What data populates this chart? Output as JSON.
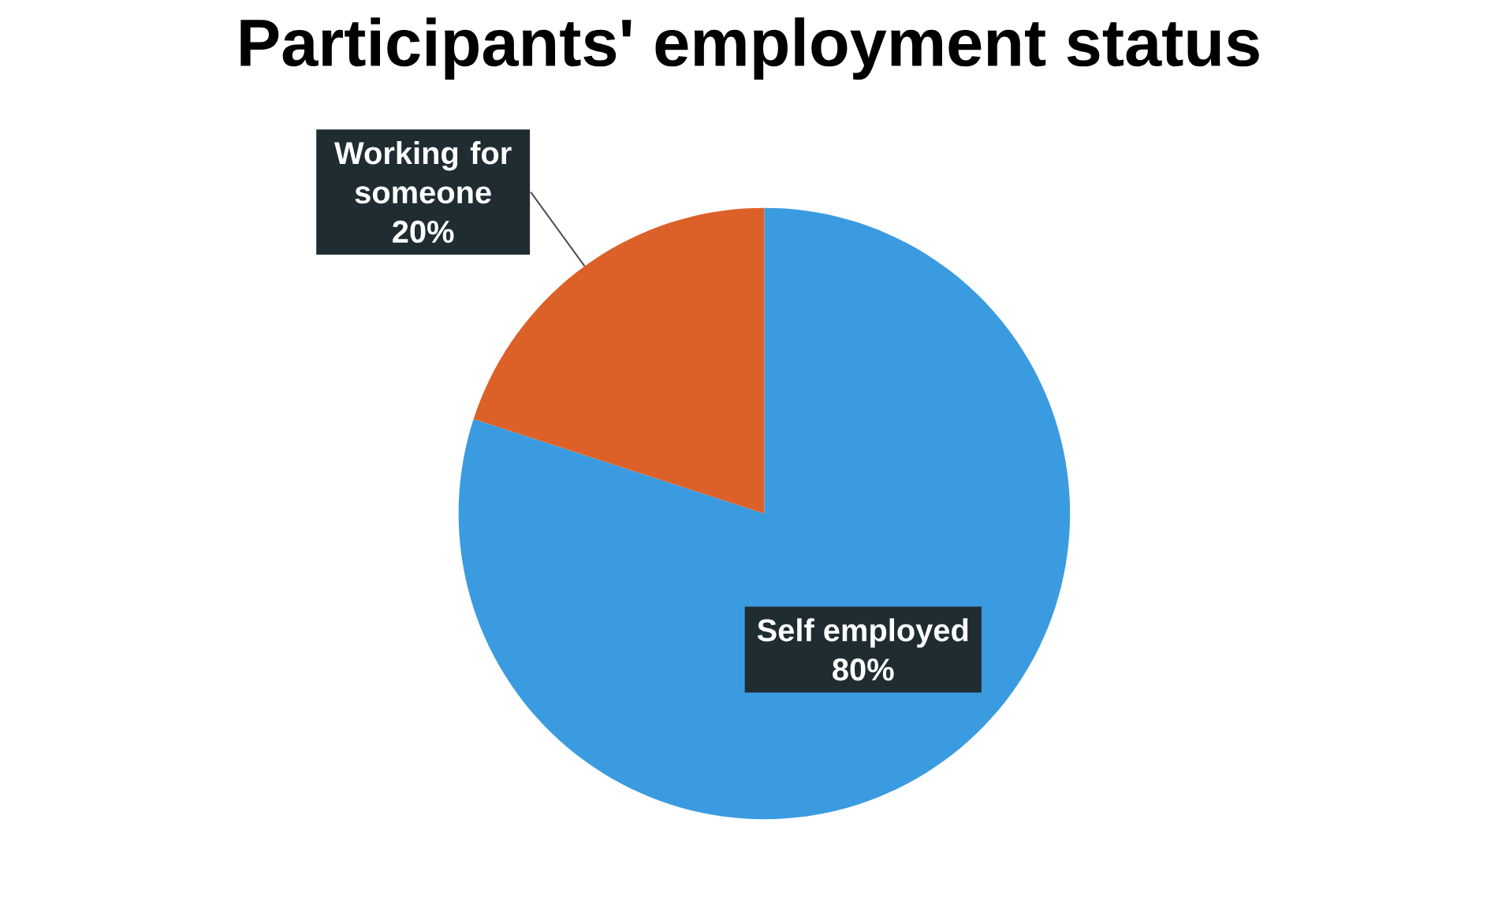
{
  "chart_data": {
    "type": "pie",
    "title": "Participants' employment status",
    "categories": [
      "Self employed",
      "Working for someone"
    ],
    "values": [
      80,
      20
    ],
    "value_labels": [
      "80%",
      "20%"
    ],
    "colors": [
      "#3b9be0",
      "#dc6128"
    ]
  }
}
